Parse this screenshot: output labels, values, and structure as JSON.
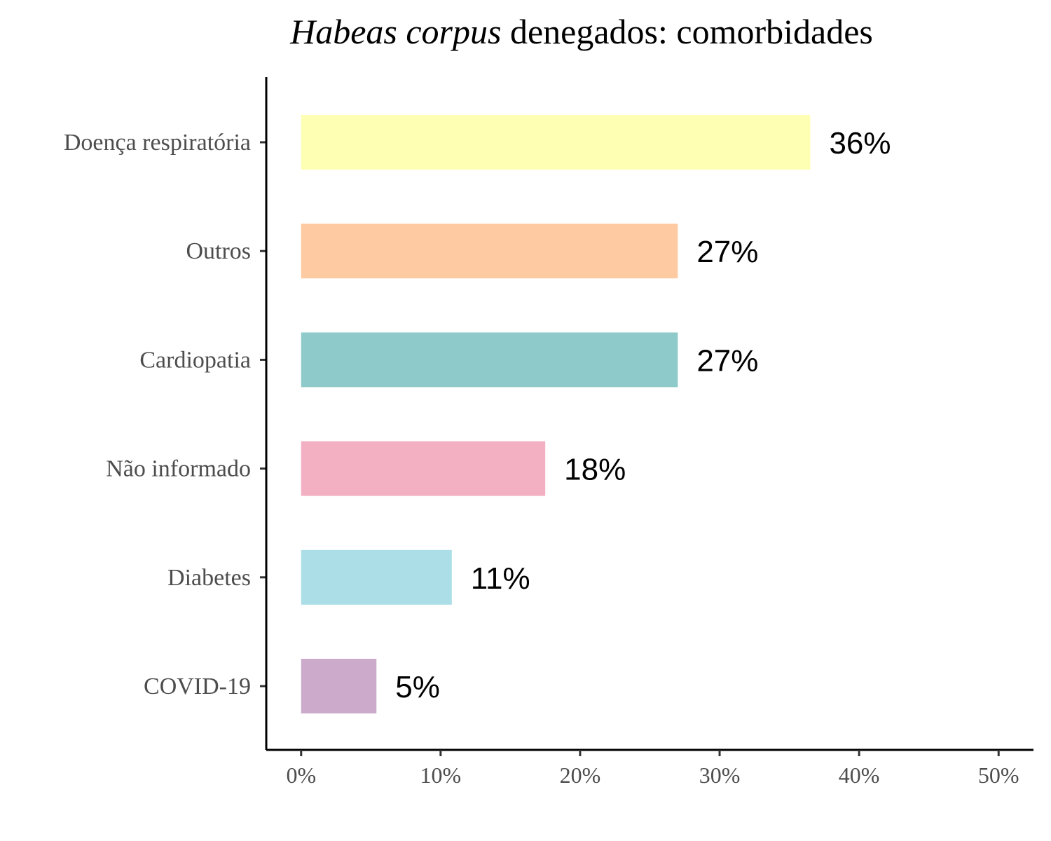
{
  "chart_data": {
    "type": "bar",
    "orientation": "horizontal",
    "title": {
      "italic": "Habeas corpus",
      "rest": " denegados: comorbidades"
    },
    "xlabel": "",
    "ylabel": "",
    "categories": [
      "Doença respiratória",
      "Outros",
      "Cardiopatia",
      "Não informado",
      "Diabetes",
      "COVID-19"
    ],
    "values": [
      36.5,
      27,
      27,
      17.5,
      10.8,
      5.4
    ],
    "value_labels": [
      "36%",
      "27%",
      "27%",
      "18%",
      "11%",
      "5%"
    ],
    "colors": [
      "#FFFFB3",
      "#FDCAA2",
      "#8FCACA",
      "#F3B0C3",
      "#ABDEE6",
      "#CBAACB"
    ],
    "xlim": [
      -2.5,
      52.5
    ],
    "xticks": [
      0,
      10,
      20,
      30,
      40,
      50
    ],
    "xtick_labels": [
      "0%",
      "10%",
      "20%",
      "30%",
      "40%",
      "50%"
    ],
    "grid": false,
    "legend": "none"
  }
}
